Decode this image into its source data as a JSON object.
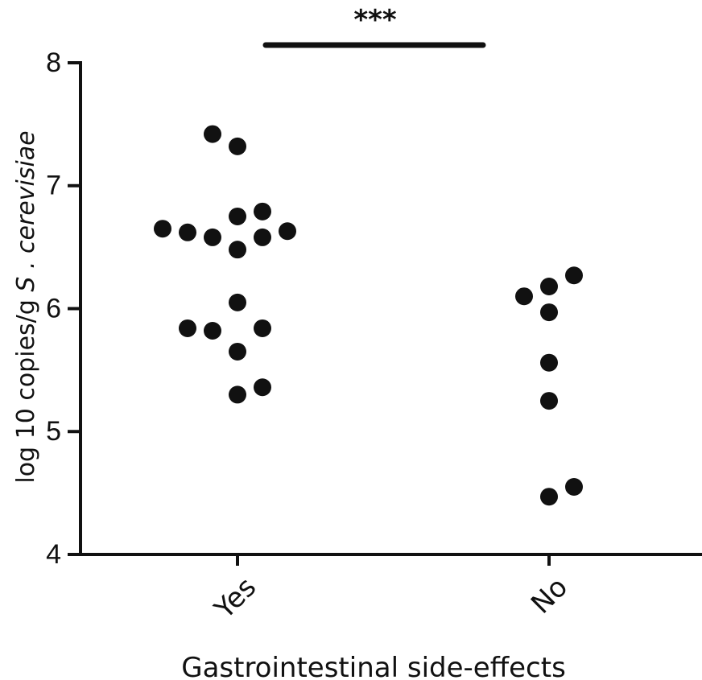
{
  "chart_data": {
    "type": "scatter",
    "xlabel": "Gastrointestinal side-effects",
    "ylabel_prefix": "log 10 copies/g ",
    "ylabel_species": "S . cerevisiae",
    "ylim": [
      4,
      8
    ],
    "yticks": [
      "4",
      "5",
      "6",
      "7",
      "8"
    ],
    "categories": [
      "Yes",
      "No"
    ],
    "grid": false,
    "legend": "none",
    "significance": {
      "label": "***",
      "between": [
        "Yes",
        "No"
      ]
    },
    "series": [
      {
        "category": "Yes",
        "points": [
          {
            "y": 7.42,
            "jitter": -1
          },
          {
            "y": 7.32,
            "jitter": 0
          },
          {
            "y": 6.79,
            "jitter": 1
          },
          {
            "y": 6.75,
            "jitter": 0
          },
          {
            "y": 6.65,
            "jitter": -3
          },
          {
            "y": 6.63,
            "jitter": 2
          },
          {
            "y": 6.62,
            "jitter": -2
          },
          {
            "y": 6.58,
            "jitter": -1
          },
          {
            "y": 6.58,
            "jitter": 1
          },
          {
            "y": 6.48,
            "jitter": 0
          },
          {
            "y": 6.05,
            "jitter": 0
          },
          {
            "y": 5.84,
            "jitter": -2
          },
          {
            "y": 5.84,
            "jitter": 1
          },
          {
            "y": 5.82,
            "jitter": -1
          },
          {
            "y": 5.65,
            "jitter": 0
          },
          {
            "y": 5.36,
            "jitter": 1
          },
          {
            "y": 5.3,
            "jitter": 0
          }
        ]
      },
      {
        "category": "No",
        "points": [
          {
            "y": 6.27,
            "jitter": 1
          },
          {
            "y": 6.18,
            "jitter": 0
          },
          {
            "y": 6.1,
            "jitter": -1
          },
          {
            "y": 5.97,
            "jitter": 0
          },
          {
            "y": 5.56,
            "jitter": 0
          },
          {
            "y": 5.25,
            "jitter": 0
          },
          {
            "y": 4.55,
            "jitter": 1
          },
          {
            "y": 4.47,
            "jitter": 0
          }
        ]
      }
    ]
  }
}
